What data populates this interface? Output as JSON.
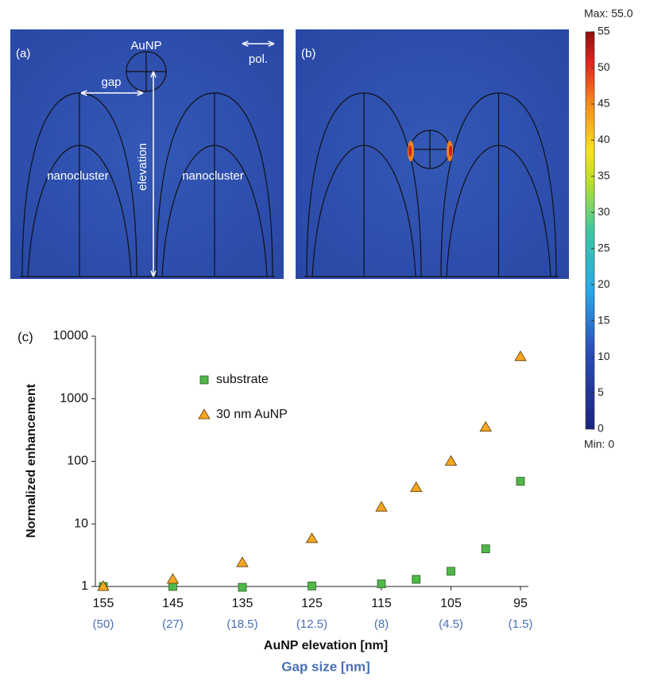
{
  "panels": {
    "a": {
      "label": "(a)",
      "particle": "AuNP",
      "gap": "gap",
      "elevation": "elevation",
      "clusters": [
        "nanocluster",
        "nanocluster"
      ],
      "polarization": "pol."
    },
    "b": {
      "label": "(b)"
    }
  },
  "chart_data": [
    {
      "type": "scatter",
      "panel_label": "(c)",
      "xlabel": "AuNP elevation [nm]",
      "x2label": "Gap size [nm]",
      "ylabel": "Normalized enhancement",
      "xlim": [
        155,
        95
      ],
      "xticks": [
        155,
        145,
        135,
        125,
        115,
        105,
        95
      ],
      "x2ticks": [
        {
          "value": 155,
          "label": "(50)"
        },
        {
          "value": 145,
          "label": "(27)"
        },
        {
          "value": 135,
          "label": "(18.5)"
        },
        {
          "value": 125,
          "label": "(12.5)"
        },
        {
          "value": 115,
          "label": "(8)"
        },
        {
          "value": 105,
          "label": "(4.5)"
        },
        {
          "value": 95,
          "label": "(1.5)"
        }
      ],
      "ylim": [
        1,
        10000
      ],
      "yticks": [
        1,
        10,
        100,
        1000,
        10000
      ],
      "log_y": true,
      "series": [
        {
          "name": "substrate",
          "color": "#4fb848",
          "marker": "square",
          "x": [
            155,
            145,
            135,
            125,
            115,
            110,
            105,
            100,
            95
          ],
          "values": [
            1,
            1,
            0.97,
            1.02,
            1.1,
            1.3,
            1.75,
            4,
            48
          ]
        },
        {
          "name": "30 nm AuNP",
          "color": "#f5a623",
          "marker": "triangle",
          "x": [
            155,
            145,
            135,
            125,
            115,
            110,
            105,
            100,
            95
          ],
          "values": [
            1,
            1.3,
            2.4,
            5.8,
            18.5,
            38,
            100,
            350,
            4700
          ]
        }
      ]
    },
    {
      "type": "colorbar",
      "max_label": "Max: 55.0",
      "min_label": "Min: 0",
      "ylim": [
        0,
        55
      ],
      "yticks": [
        0,
        5,
        10,
        15,
        20,
        25,
        30,
        35,
        40,
        45,
        50,
        55
      ]
    }
  ]
}
